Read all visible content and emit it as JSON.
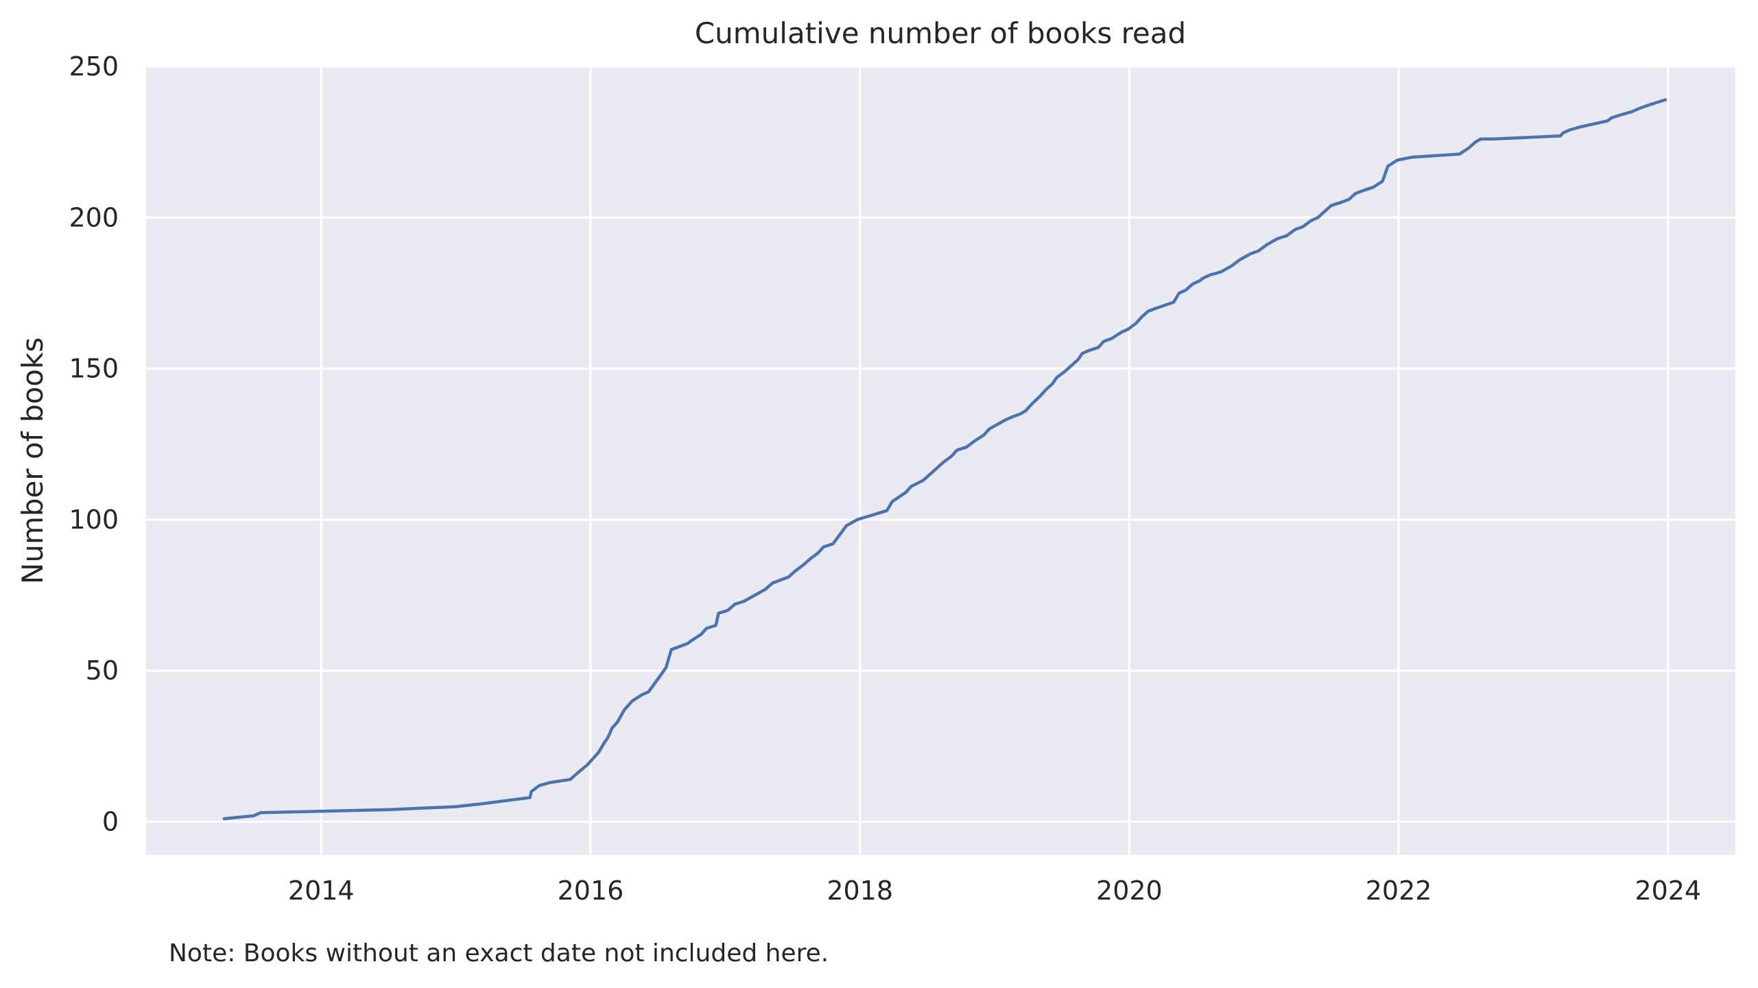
{
  "chart_data": {
    "type": "line",
    "title": "Cumulative number of books read",
    "xlabel": "",
    "ylabel": "Number of books",
    "x_ticks": [
      "2014",
      "2016",
      "2018",
      "2020",
      "2022",
      "2024"
    ],
    "y_ticks": [
      "0",
      "50",
      "100",
      "150",
      "200",
      "250"
    ],
    "xlim": [
      2012.7,
      2024.5
    ],
    "ylim": [
      -11,
      250
    ],
    "grid": true,
    "background_color": "#eaeaf2",
    "line_color": "#4c72b0",
    "series": [
      {
        "x": [
          2013.28,
          2013.5,
          2013.55,
          2014.5,
          2015.0,
          2015.2,
          2015.55,
          2015.56,
          2015.62,
          2015.7,
          2015.85,
          2015.9,
          2015.98,
          2016.02,
          2016.06,
          2016.1,
          2016.13,
          2016.16,
          2016.2,
          2016.25,
          2016.31,
          2016.38,
          2016.43,
          2016.48,
          2016.56,
          2016.6,
          2016.72,
          2016.75,
          2016.82,
          2016.86,
          2016.93,
          2016.95,
          2017.02,
          2017.07,
          2017.14,
          2017.22,
          2017.3,
          2017.35,
          2017.47,
          2017.52,
          2017.58,
          2017.63,
          2017.69,
          2017.73,
          2017.8,
          2017.9,
          2017.98,
          2018.2,
          2018.24,
          2018.34,
          2018.38,
          2018.47,
          2018.52,
          2018.57,
          2018.62,
          2018.68,
          2018.72,
          2018.79,
          2018.85,
          2018.92,
          2018.96,
          2019.0,
          2019.08,
          2019.13,
          2019.19,
          2019.23,
          2019.27,
          2019.34,
          2019.38,
          2019.43,
          2019.46,
          2019.52,
          2019.57,
          2019.62,
          2019.65,
          2019.7,
          2019.77,
          2019.81,
          2019.87,
          2019.94,
          2019.99,
          2020.05,
          2020.09,
          2020.14,
          2020.2,
          2020.33,
          2020.37,
          2020.42,
          2020.47,
          2020.52,
          2020.55,
          2020.6,
          2020.68,
          2020.76,
          2020.82,
          2020.9,
          2020.96,
          2021.02,
          2021.1,
          2021.17,
          2021.23,
          2021.29,
          2021.35,
          2021.4,
          2021.45,
          2021.5,
          2021.57,
          2021.63,
          2021.68,
          2021.74,
          2021.81,
          2021.88,
          2021.92,
          2021.99,
          2022.1,
          2022.45,
          2022.52,
          2022.57,
          2022.61,
          2022.7,
          2023.2,
          2023.22,
          2023.27,
          2023.35,
          2023.45,
          2023.55,
          2023.58,
          2023.65,
          2023.73,
          2023.78,
          2023.84,
          2023.98
        ],
        "y": [
          1,
          2,
          3,
          4,
          5,
          6,
          8,
          10,
          12,
          13,
          14,
          16,
          19,
          21,
          23,
          26,
          28,
          31,
          33,
          37,
          40,
          42,
          43,
          46,
          51,
          57,
          59,
          60,
          62,
          64,
          65,
          69,
          70,
          72,
          73,
          75,
          77,
          79,
          81,
          83,
          85,
          87,
          89,
          91,
          92,
          98,
          100,
          103,
          106,
          109,
          111,
          113,
          115,
          117,
          119,
          121,
          123,
          124,
          126,
          128,
          130,
          131,
          133,
          134,
          135,
          136,
          138,
          141,
          143,
          145,
          147,
          149,
          151,
          153,
          155,
          156,
          157,
          159,
          160,
          162,
          163,
          165,
          167,
          169,
          170,
          172,
          175,
          176,
          178,
          179,
          180,
          181,
          182,
          184,
          186,
          188,
          189,
          191,
          193,
          194,
          196,
          197,
          199,
          200,
          202,
          204,
          205,
          206,
          208,
          209,
          210,
          212,
          217,
          219,
          220,
          221,
          223,
          225,
          226,
          226,
          227,
          228,
          229,
          230,
          231,
          232,
          233,
          234,
          235,
          236,
          237,
          239
        ]
      }
    ]
  },
  "note": "Note: Books without an exact date not included here."
}
